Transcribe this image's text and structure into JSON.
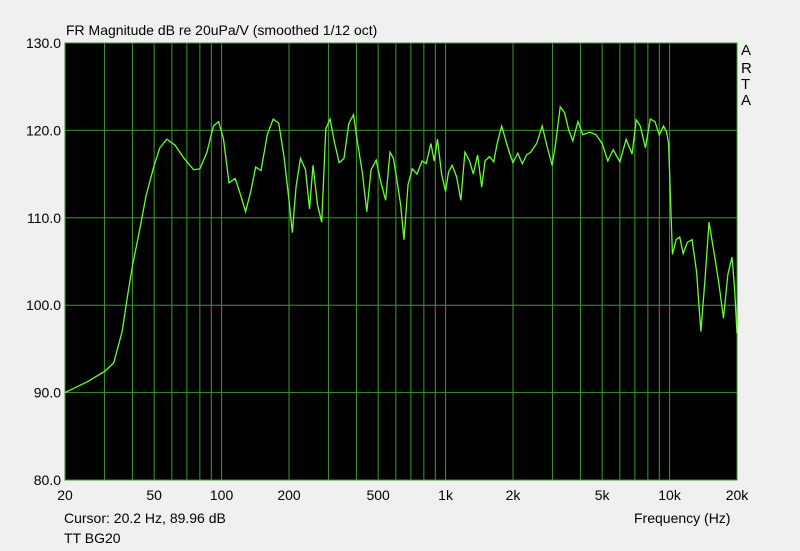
{
  "chart_data": {
    "type": "line",
    "title": "FR Magnitude dB re 20uPa/V (smoothed 1/12 oct)",
    "xlabel": "Frequency (Hz)",
    "ylabel": "",
    "x_scale": "log",
    "xlim": [
      20,
      20000
    ],
    "ylim": [
      80,
      130
    ],
    "grid": true,
    "y_ticks": [
      "130.0",
      "120.0",
      "110.0",
      "100.0",
      "90.0",
      "80.0"
    ],
    "x_ticks": [
      {
        "value": 20,
        "label": "20"
      },
      {
        "value": 50,
        "label": "50"
      },
      {
        "value": 100,
        "label": "100"
      },
      {
        "value": 200,
        "label": "200"
      },
      {
        "value": 500,
        "label": "500"
      },
      {
        "value": 1000,
        "label": "1k"
      },
      {
        "value": 2000,
        "label": "2k"
      },
      {
        "value": 5000,
        "label": "5k"
      },
      {
        "value": 10000,
        "label": "10k"
      },
      {
        "value": 20000,
        "label": "20k"
      }
    ],
    "series": [
      {
        "name": "TT BG20",
        "color": "#66ff33",
        "points": [
          [
            20,
            90.0
          ],
          [
            25,
            91.2
          ],
          [
            30,
            92.4
          ],
          [
            33,
            93.4
          ],
          [
            36,
            97.0
          ],
          [
            38,
            101.0
          ],
          [
            40,
            104.5
          ],
          [
            43,
            108.5
          ],
          [
            46,
            112.5
          ],
          [
            50,
            116.0
          ],
          [
            53,
            118.0
          ],
          [
            57,
            119.0
          ],
          [
            62,
            118.3
          ],
          [
            68,
            116.8
          ],
          [
            75,
            115.5
          ],
          [
            80,
            115.6
          ],
          [
            86,
            117.5
          ],
          [
            92,
            120.5
          ],
          [
            97,
            121.0
          ],
          [
            102,
            119.0
          ],
          [
            108,
            114.0
          ],
          [
            115,
            114.5
          ],
          [
            122,
            112.5
          ],
          [
            128,
            110.7
          ],
          [
            135,
            113.0
          ],
          [
            142,
            115.8
          ],
          [
            150,
            115.4
          ],
          [
            160,
            119.5
          ],
          [
            170,
            121.3
          ],
          [
            180,
            120.8
          ],
          [
            190,
            117.0
          ],
          [
            200,
            112.0
          ],
          [
            207,
            108.3
          ],
          [
            215,
            113.5
          ],
          [
            225,
            116.8
          ],
          [
            237,
            115.5
          ],
          [
            247,
            111.0
          ],
          [
            256,
            116.0
          ],
          [
            268,
            111.5
          ],
          [
            280,
            109.5
          ],
          [
            292,
            120.2
          ],
          [
            305,
            121.3
          ],
          [
            320,
            118.5
          ],
          [
            335,
            116.3
          ],
          [
            352,
            116.8
          ],
          [
            370,
            120.8
          ],
          [
            388,
            121.8
          ],
          [
            405,
            118.5
          ],
          [
            425,
            115.2
          ],
          [
            445,
            110.7
          ],
          [
            465,
            115.5
          ],
          [
            490,
            116.6
          ],
          [
            515,
            114.0
          ],
          [
            540,
            112.0
          ],
          [
            565,
            117.5
          ],
          [
            585,
            116.8
          ],
          [
            605,
            114.5
          ],
          [
            630,
            111.5
          ],
          [
            652,
            107.5
          ],
          [
            680,
            113.8
          ],
          [
            710,
            115.6
          ],
          [
            745,
            115.0
          ],
          [
            785,
            116.5
          ],
          [
            820,
            116.2
          ],
          [
            860,
            118.5
          ],
          [
            890,
            116.5
          ],
          [
            920,
            119.0
          ],
          [
            960,
            115.0
          ],
          [
            1000,
            113.0
          ],
          [
            1030,
            115.2
          ],
          [
            1070,
            116.0
          ],
          [
            1120,
            114.7
          ],
          [
            1170,
            112.0
          ],
          [
            1220,
            117.5
          ],
          [
            1280,
            116.5
          ],
          [
            1330,
            115.0
          ],
          [
            1390,
            117.2
          ],
          [
            1450,
            113.5
          ],
          [
            1500,
            116.5
          ],
          [
            1570,
            117.0
          ],
          [
            1640,
            116.4
          ],
          [
            1700,
            118.5
          ],
          [
            1780,
            120.5
          ],
          [
            1850,
            119.0
          ],
          [
            1930,
            117.4
          ],
          [
            2000,
            116.3
          ],
          [
            2100,
            117.4
          ],
          [
            2200,
            116.2
          ],
          [
            2300,
            117.2
          ],
          [
            2400,
            117.5
          ],
          [
            2550,
            118.5
          ],
          [
            2700,
            120.5
          ],
          [
            2850,
            118.0
          ],
          [
            2990,
            116.0
          ],
          [
            3100,
            118.5
          ],
          [
            3250,
            122.7
          ],
          [
            3400,
            122.0
          ],
          [
            3550,
            120.0
          ],
          [
            3700,
            118.8
          ],
          [
            3900,
            121.0
          ],
          [
            4100,
            119.5
          ],
          [
            4400,
            119.8
          ],
          [
            4700,
            119.5
          ],
          [
            5000,
            118.5
          ],
          [
            5300,
            116.5
          ],
          [
            5600,
            117.8
          ],
          [
            6000,
            116.4
          ],
          [
            6400,
            119.0
          ],
          [
            6800,
            117.3
          ],
          [
            7100,
            121.2
          ],
          [
            7400,
            120.5
          ],
          [
            7800,
            118.0
          ],
          [
            8200,
            121.3
          ],
          [
            8600,
            121.0
          ],
          [
            9000,
            119.5
          ],
          [
            9400,
            120.5
          ],
          [
            9700,
            119.8
          ],
          [
            9900,
            118.5
          ],
          [
            10100,
            112.0
          ],
          [
            10300,
            105.8
          ],
          [
            10700,
            107.5
          ],
          [
            11100,
            107.8
          ],
          [
            11500,
            105.9
          ],
          [
            12000,
            107.2
          ],
          [
            12600,
            107.5
          ],
          [
            13200,
            103.8
          ],
          [
            13800,
            97.0
          ],
          [
            14400,
            103.0
          ],
          [
            15000,
            109.5
          ],
          [
            15800,
            106.0
          ],
          [
            16600,
            102.5
          ],
          [
            17400,
            98.5
          ],
          [
            18200,
            103.5
          ],
          [
            19000,
            105.5
          ],
          [
            19500,
            102.0
          ],
          [
            20000,
            96.8
          ]
        ]
      }
    ]
  },
  "status": {
    "cursor": "Cursor: 20.2 Hz, 89.96 dB",
    "trace_name": "TT BG20"
  },
  "brand": [
    "A",
    "R",
    "T",
    "A"
  ],
  "colors": {
    "plot_bg": "#000000",
    "grid": "#3a9a2a",
    "trace": "#66ff33",
    "window_bg": "#f0f0f0"
  }
}
